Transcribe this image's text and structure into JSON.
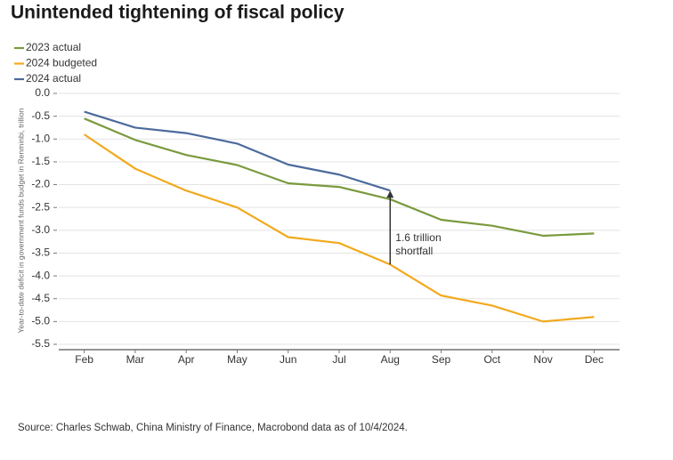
{
  "chart_data": {
    "type": "line",
    "title": "Unintended tightening of fiscal policy",
    "y_label": "Year-to-date deficit in government funds budget in Renminbi, trillion",
    "categories": [
      "Feb",
      "Mar",
      "Apr",
      "May",
      "Jun",
      "Jul",
      "Aug",
      "Sep",
      "Oct",
      "Nov",
      "Dec"
    ],
    "series": [
      {
        "name": "2023 actual",
        "color": "#7a9a3e",
        "values": [
          -0.55,
          -1.02,
          -1.35,
          -1.57,
          -1.97,
          -2.05,
          -2.32,
          -2.77,
          -2.9,
          -3.12,
          -3.07
        ]
      },
      {
        "name": "2024 budgeted",
        "color": "#f2a91d",
        "values": [
          -0.9,
          -1.65,
          -2.13,
          -2.5,
          -3.15,
          -3.28,
          -3.75,
          -4.43,
          -4.65,
          -5.0,
          -4.9
        ]
      },
      {
        "name": "2024 actual",
        "color": "#4c6a9c",
        "values": [
          -0.4,
          -0.75,
          -0.87,
          -1.1,
          -1.56,
          -1.78,
          -2.13,
          null,
          null,
          null,
          null
        ]
      }
    ],
    "ylim": [
      -5.5,
      0
    ],
    "yticks": [
      {
        "value": 0,
        "label": "0.0"
      },
      -0.5,
      {
        "value": -1,
        "label": "-1.0"
      },
      -1.5,
      {
        "value": -2,
        "label": "-2.0"
      },
      -2.5,
      {
        "value": -3,
        "label": "-3.0"
      },
      -3.5,
      {
        "value": -4,
        "label": "-4.0"
      },
      -4.5,
      {
        "value": -5,
        "label": "-5.0"
      },
      -5.5
    ],
    "grid": true,
    "legend": "top-left",
    "annotation": {
      "lines": [
        "1.6 trillion",
        "shortfall"
      ]
    },
    "source": "Source: Charles Schwab, China Ministry of Finance, Macrobond data as of 10/4/2024."
  }
}
